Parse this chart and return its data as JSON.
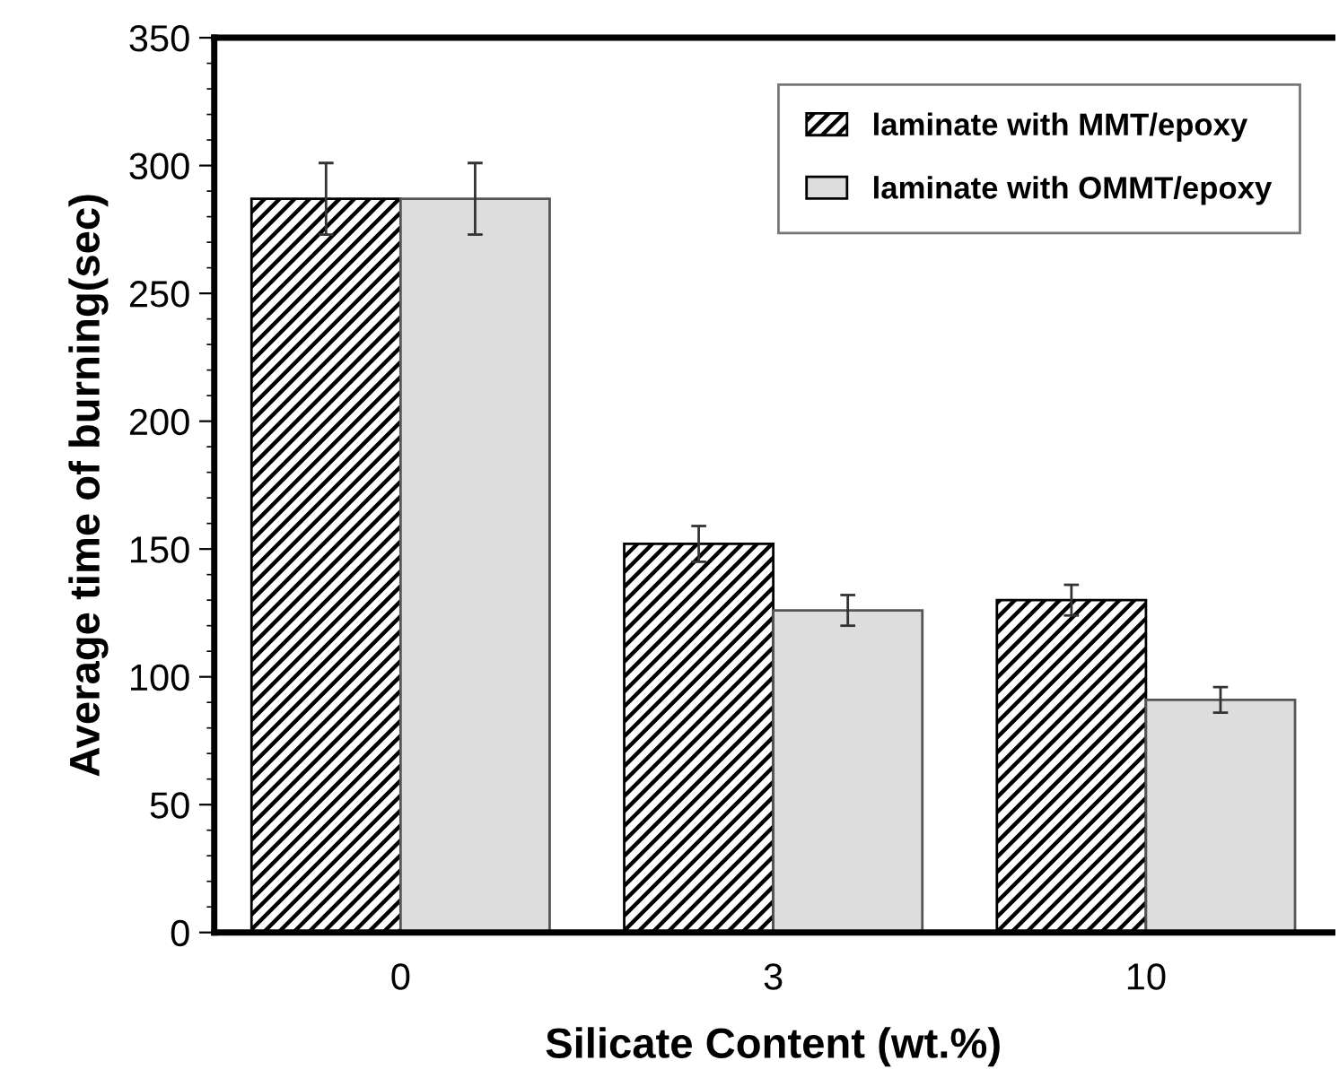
{
  "chart_data": {
    "type": "bar",
    "xlabel": "Silicate Content (wt.%)",
    "ylabel": "Average time of burning(sec)",
    "categories": [
      "0",
      "3",
      "10"
    ],
    "series": [
      {
        "name": "laminate with MMT/epoxy",
        "color": "#000000",
        "values": [
          287,
          152,
          130
        ],
        "errors": [
          14,
          7,
          6
        ]
      },
      {
        "name": "laminate with OMMT/epoxy",
        "color": "#dcdddc",
        "values": [
          287,
          126,
          91
        ],
        "errors": [
          14,
          6,
          5
        ]
      }
    ],
    "ylim": [
      0,
      350
    ],
    "yticks": [
      0,
      50,
      100,
      150,
      200,
      250,
      300,
      350
    ],
    "grid": false,
    "legend": "top right"
  }
}
